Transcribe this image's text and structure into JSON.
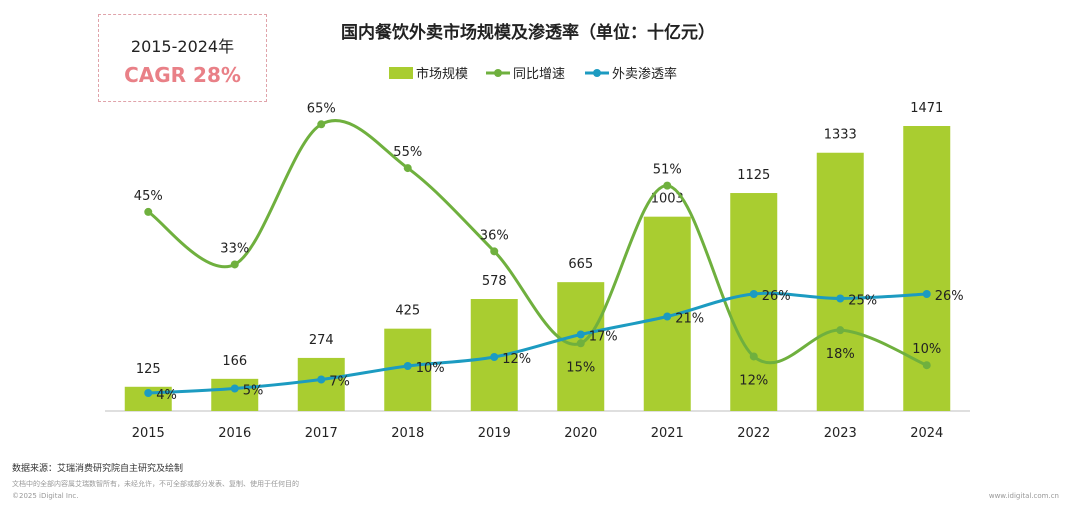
{
  "cagr": {
    "period": "2015-2024年",
    "value": "CAGR 28%"
  },
  "chart_data": {
    "type": "bar+line",
    "title": "国内餐饮外卖市场规模及渗透率（单位：十亿元）",
    "categories": [
      "2015",
      "2016",
      "2017",
      "2018",
      "2019",
      "2020",
      "2021",
      "2022",
      "2023",
      "2024"
    ],
    "series": [
      {
        "name": "市场规模",
        "kind": "bar",
        "color": "#a9cd30",
        "values": [
          125,
          166,
          274,
          425,
          578,
          665,
          1003,
          1125,
          1333,
          1471
        ],
        "labels": [
          "125",
          "166",
          "274",
          "425",
          "578",
          "665",
          "1003",
          "1125",
          "1333",
          "1471"
        ]
      },
      {
        "name": "同比增速",
        "kind": "line",
        "color": "#6fb03e",
        "values": [
          45,
          33,
          65,
          55,
          36,
          15,
          51,
          12,
          18,
          10
        ],
        "labels": [
          "45%",
          "33%",
          "65%",
          "55%",
          "36%",
          "15%",
          "51%",
          "12%",
          "18%",
          "10%"
        ]
      },
      {
        "name": "外卖渗透率",
        "kind": "line",
        "color": "#1c9bc1",
        "values": [
          4,
          5,
          7,
          10,
          12,
          17,
          21,
          26,
          25,
          26
        ],
        "labels": [
          "4%",
          "5%",
          "7%",
          "10%",
          "12%",
          "17%",
          "21%",
          "26%",
          "25%",
          "26%"
        ]
      }
    ],
    "legend": "top-center"
  },
  "footer": {
    "source": "数据来源：艾瑞消费研究院自主研究及绘制",
    "disclaimer": "文档中的全部内容属艾瑞数智所有，未经允许，不可全部或部分发表、复制、使用于任何目的",
    "copyright": "©2025 iDigital Inc.",
    "website": "www.idigital.com.cn"
  }
}
